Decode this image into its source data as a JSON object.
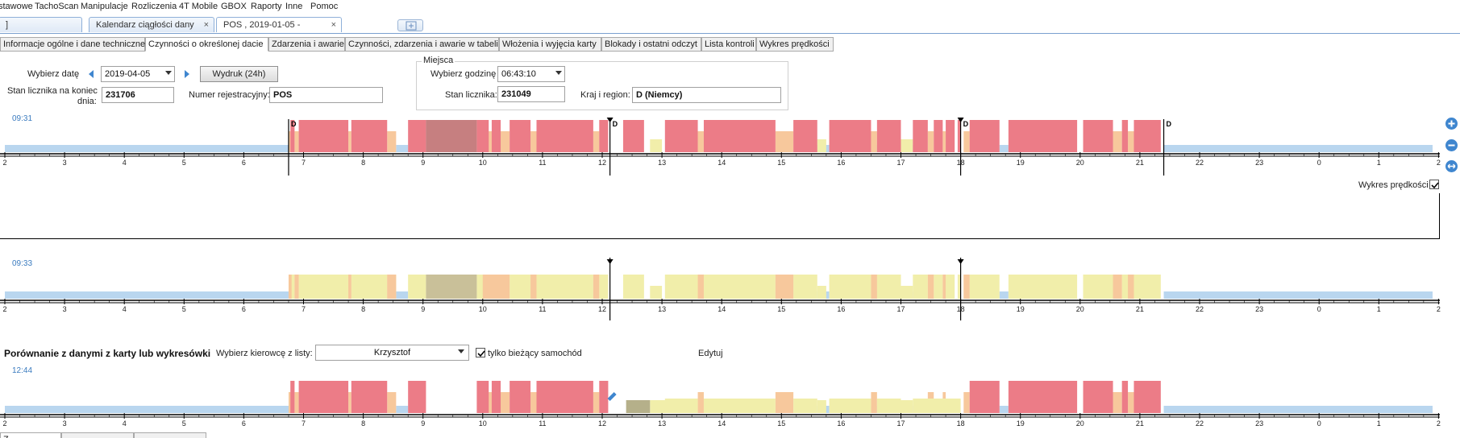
{
  "menu": [
    "stawowe",
    "TachoScan",
    "Manipulacje",
    "Rozliczenia",
    "4T Mobile",
    "GBOX",
    "Raporty",
    "Inne",
    "Pomoc"
  ],
  "doc_tabs": [
    {
      "label": "]",
      "close": ""
    },
    {
      "label": "Kalendarz ciągłości danych",
      "close": "×"
    },
    {
      "label": "POS            , 2019-01-05 -",
      "close": "×"
    }
  ],
  "sub_tabs": [
    "Informacje ogólne i dane techniczne",
    "Czynności o określonej dacie",
    "Zdarzenia i awarie",
    "Czynności, zdarzenia i awarie w tabeli",
    "Włożenia i wyjęcia karty",
    "Blokady i ostatni odczyt",
    "Lista kontroli",
    "Wykres prędkości"
  ],
  "form": {
    "date_label": "Wybierz datę",
    "date_value": "2019-04-05",
    "print_button": "Wydruk (24h)",
    "odometer_label_1": "Stan licznika na koniec",
    "odometer_label_2": "dnia:",
    "odometer_value": "231706",
    "reg_label": "Numer rejestracyjny:",
    "reg_value": "POS",
    "places_group": "Miejsca",
    "hour_label": "Wybierz godzinę",
    "hour_value": "06:43:10",
    "counter_label": "Stan licznika:",
    "counter_value": "231049",
    "country_label": "Kraj i region:",
    "country_value": "D (Niemcy)"
  },
  "chart1": {
    "time": "09:31"
  },
  "speed_label": "Wykres prędkości",
  "chart2": {
    "time": "09:33"
  },
  "compare": {
    "title": "Porównanie z danymi z karty lub wykresówki",
    "driver_label": "Wybierz kierowcę z listy:",
    "driver_value": "Krzysztof",
    "only_vehicle": "tylko bieżący samochód",
    "edit": "Edytuj"
  },
  "chart3": {
    "time": "12:44"
  },
  "bottom_tabs": [
    "Z",
    "",
    "",
    ""
  ],
  "axis_hours": [
    "2",
    "3",
    "4",
    "5",
    "6",
    "7",
    "8",
    "9",
    "10",
    "11",
    "12",
    "13",
    "14",
    "15",
    "16",
    "17",
    "18",
    "19",
    "20",
    "21",
    "22",
    "23",
    "0",
    "1",
    "2"
  ],
  "colors": {
    "drive": "#ec7c87",
    "work": "#f7c89c",
    "avail": "#f1eeaa",
    "rest": "#b9d6ef",
    "highlight": "#c67f80",
    "axis": "#000000",
    "accent": "#3a7bbf"
  },
  "charts": [
    {
      "name": "chart-activities-vehicle",
      "d_markers": [
        "D",
        "D",
        "D",
        "D"
      ]
    },
    {
      "name": "chart-activities-copy"
    },
    {
      "name": "chart-activities-card"
    }
  ]
}
